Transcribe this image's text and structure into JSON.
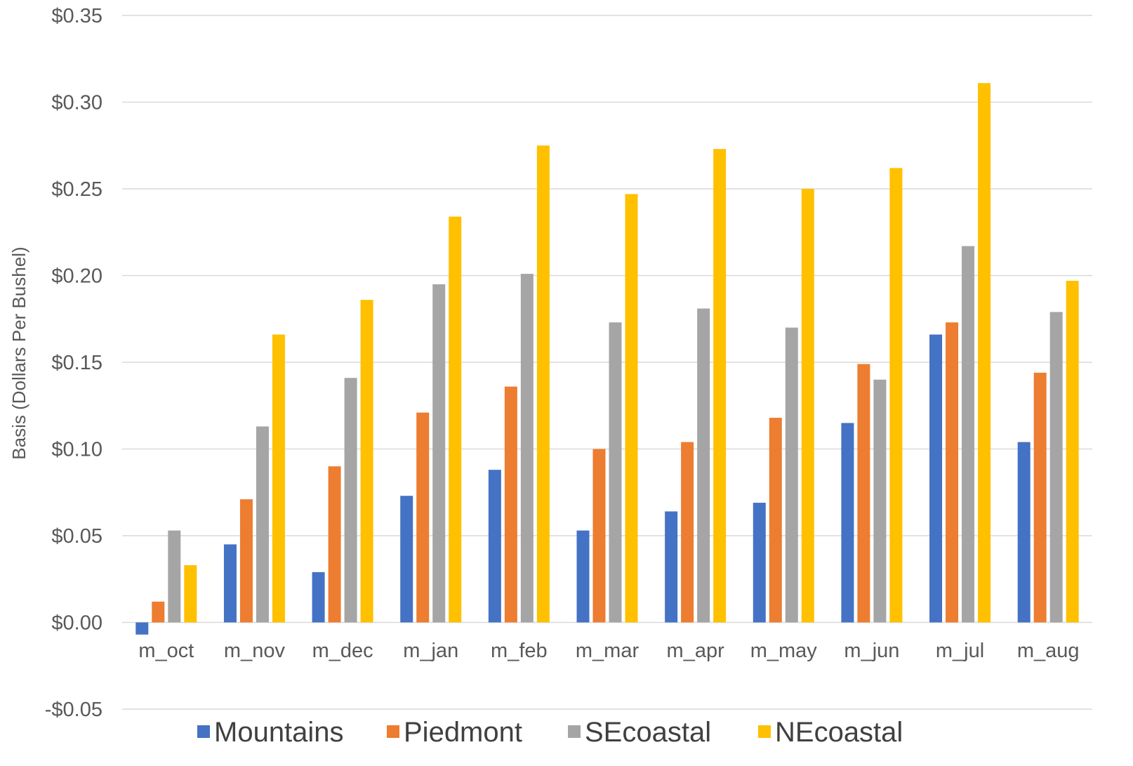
{
  "chart_data": {
    "type": "bar",
    "title": "",
    "xlabel": "",
    "ylabel": "Basis (Dollars Per Bushel)",
    "ylim": [
      -0.05,
      0.35
    ],
    "yticks": [
      {
        "value": 0.35,
        "label": "$0.35"
      },
      {
        "value": 0.3,
        "label": "$0.30"
      },
      {
        "value": 0.25,
        "label": "$0.25"
      },
      {
        "value": 0.2,
        "label": "$0.20"
      },
      {
        "value": 0.15,
        "label": "$0.15"
      },
      {
        "value": 0.1,
        "label": "$0.10"
      },
      {
        "value": 0.05,
        "label": "$0.05"
      },
      {
        "value": 0.0,
        "label": "$0.00"
      },
      {
        "value": -0.05,
        "label": "-$0.05"
      }
    ],
    "grid": true,
    "legend_position": "bottom",
    "categories": [
      "m_oct",
      "m_nov",
      "m_dec",
      "m_jan",
      "m_feb",
      "m_mar",
      "m_apr",
      "m_may",
      "m_jun",
      "m_jul",
      "m_aug"
    ],
    "series": [
      {
        "name": "Mountains",
        "color": "#4472c4",
        "values": [
          -0.007,
          0.045,
          0.029,
          0.073,
          0.088,
          0.053,
          0.064,
          0.069,
          0.115,
          0.166,
          0.104
        ]
      },
      {
        "name": "Piedmont",
        "color": "#ed7d31",
        "values": [
          0.012,
          0.071,
          0.09,
          0.121,
          0.136,
          0.1,
          0.104,
          0.118,
          0.149,
          0.173,
          0.144
        ]
      },
      {
        "name": "SEcoastal",
        "color": "#a5a5a5",
        "values": [
          0.053,
          0.113,
          0.141,
          0.195,
          0.201,
          0.173,
          0.181,
          0.17,
          0.14,
          0.217,
          0.179
        ]
      },
      {
        "name": "NEcoastal",
        "color": "#ffc000",
        "values": [
          0.033,
          0.166,
          0.186,
          0.234,
          0.275,
          0.247,
          0.273,
          0.25,
          0.262,
          0.311,
          0.197
        ]
      }
    ]
  }
}
